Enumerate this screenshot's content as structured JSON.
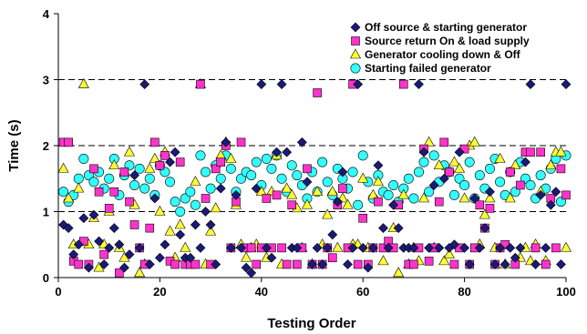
{
  "chart_data": {
    "type": "scatter",
    "xlabel": "Testing Order",
    "ylabel": "Time (s)",
    "xlim": [
      0,
      100
    ],
    "ylim": [
      0,
      4
    ],
    "x_ticks": [
      "0",
      "20",
      "40",
      "60",
      "80",
      "100"
    ],
    "y_ticks": [
      "0",
      "1",
      "2",
      "3",
      "4"
    ],
    "dashed_gridlines_y": [
      1,
      2,
      3
    ],
    "legend_placement": "top-right",
    "series": [
      {
        "name": "Off source & starting generator",
        "marker": "diamond",
        "color": "#1a1a7a",
        "x": [
          1,
          2,
          3,
          4,
          5,
          6,
          7,
          8,
          9,
          10,
          11,
          12,
          13,
          14,
          15,
          16,
          17,
          18,
          19,
          20,
          21,
          22,
          23,
          24,
          25,
          26,
          27,
          28,
          29,
          30,
          31,
          32,
          33,
          34,
          35,
          36,
          37,
          38,
          39,
          40,
          41,
          42,
          43,
          44,
          45,
          46,
          47,
          48,
          49,
          50,
          51,
          52,
          53,
          54,
          55,
          56,
          57,
          58,
          59,
          60,
          61,
          62,
          63,
          64,
          65,
          66,
          67,
          68,
          69,
          70,
          71,
          72,
          73,
          74,
          75,
          76,
          77,
          78,
          79,
          80,
          81,
          82,
          83,
          84,
          85,
          86,
          87,
          88,
          89,
          90,
          91,
          92,
          93,
          94,
          95,
          96,
          97,
          98,
          99,
          100
        ],
        "y": [
          0.8,
          0.75,
          0.35,
          0.5,
          0.9,
          0.15,
          0.95,
          0.55,
          0.2,
          0.45,
          0.75,
          0.5,
          0.15,
          0.35,
          1.55,
          0.45,
          2.93,
          0.2,
          1.2,
          0.3,
          0.5,
          1.75,
          1.9,
          0.65,
          0.3,
          0.3,
          0.8,
          0.45,
          1.0,
          0.8,
          0.2,
          1.35,
          2.05,
          0.45,
          1.25,
          0.45,
          0.15,
          0.07,
          1.35,
          2.93,
          0.45,
          0.3,
          1.9,
          2.93,
          1.9,
          0.45,
          0.45,
          2.05,
          1.45,
          0.2,
          0.45,
          0.2,
          0.45,
          0.65,
          1.15,
          1.6,
          0.2,
          0.45,
          2.93,
          0.45,
          0.15,
          0.45,
          1.7,
          0.75,
          0.45,
          1.1,
          0.75,
          0.45,
          0.45,
          0.45,
          2.93,
          1.9,
          0.45,
          1.4,
          0.45,
          1.5,
          0.45,
          0.5,
          1.9,
          0.45,
          0.2,
          1.2,
          0.45,
          0.75,
          1.3,
          0.2,
          0.45,
          0.2,
          0.45,
          0.3,
          0.45,
          1.75,
          2.93,
          0.2,
          1.25,
          0.45,
          1.1,
          1.3,
          0.2,
          2.93
        ]
      },
      {
        "name": "Source return On & load supply",
        "marker": "square",
        "color": "#ff33cc",
        "x": [
          1,
          2,
          3,
          4,
          5,
          6,
          7,
          8,
          9,
          10,
          11,
          12,
          13,
          14,
          15,
          16,
          17,
          18,
          19,
          20,
          21,
          22,
          23,
          24,
          25,
          26,
          27,
          28,
          29,
          30,
          31,
          32,
          33,
          34,
          35,
          36,
          37,
          38,
          39,
          40,
          41,
          42,
          43,
          44,
          45,
          46,
          47,
          48,
          49,
          50,
          51,
          52,
          53,
          54,
          55,
          56,
          57,
          58,
          59,
          60,
          61,
          62,
          63,
          64,
          65,
          66,
          67,
          68,
          69,
          70,
          71,
          72,
          73,
          74,
          75,
          76,
          77,
          78,
          79,
          80,
          81,
          82,
          83,
          84,
          85,
          86,
          87,
          88,
          89,
          90,
          91,
          92,
          93,
          94,
          95,
          96,
          97,
          98,
          99,
          100
        ],
        "y": [
          2.05,
          2.05,
          0.25,
          0.2,
          0.55,
          0.2,
          1.65,
          1.3,
          0.35,
          1.05,
          1.3,
          0.07,
          1.6,
          1.15,
          0.8,
          0.45,
          0.2,
          0.75,
          2.05,
          1.7,
          1.85,
          0.25,
          0.2,
          1.75,
          0.2,
          0.2,
          0.2,
          2.93,
          1.2,
          0.2,
          1.65,
          1.75,
          2.0,
          0.45,
          1.15,
          2.05,
          0.45,
          0.45,
          0.2,
          0.45,
          1.2,
          0.45,
          1.25,
          0.45,
          0.2,
          1.1,
          0.2,
          0.45,
          1.65,
          0.2,
          2.8,
          0.2,
          0.45,
          0.3,
          1.1,
          1.35,
          0.45,
          2.93,
          0.2,
          0.9,
          0.2,
          0.45,
          1.15,
          0.45,
          0.55,
          0.45,
          1.1,
          2.93,
          0.2,
          0.2,
          0.45,
          1.95,
          0.25,
          0.45,
          1.15,
          2.05,
          1.6,
          0.2,
          0.45,
          1.95,
          0.2,
          0.45,
          1.1,
          0.75,
          1.05,
          0.2,
          0.45,
          0.5,
          1.6,
          0.2,
          1.4,
          1.9,
          1.9,
          0.45,
          1.9,
          0.2,
          1.2,
          0.45,
          1.65,
          1.25
        ]
      },
      {
        "name": "Generator cooling down  & Off",
        "marker": "triangle",
        "color": "#ffff33",
        "x": [
          1,
          2,
          3,
          4,
          5,
          6,
          7,
          8,
          9,
          10,
          11,
          12,
          13,
          14,
          15,
          16,
          17,
          18,
          19,
          20,
          21,
          22,
          23,
          24,
          25,
          26,
          27,
          28,
          29,
          30,
          31,
          32,
          33,
          34,
          35,
          36,
          37,
          38,
          39,
          40,
          41,
          42,
          43,
          44,
          45,
          46,
          47,
          48,
          49,
          50,
          51,
          52,
          53,
          54,
          55,
          56,
          57,
          58,
          59,
          60,
          61,
          62,
          63,
          64,
          65,
          66,
          67,
          68,
          69,
          70,
          71,
          72,
          73,
          74,
          75,
          76,
          77,
          78,
          79,
          80,
          81,
          82,
          83,
          84,
          85,
          86,
          87,
          88,
          89,
          90,
          91,
          92,
          93,
          94,
          95,
          96,
          97,
          98,
          99,
          100
        ],
        "y": [
          1.65,
          1.2,
          0.5,
          1.35,
          2.93,
          0.5,
          0.9,
          0.15,
          0.5,
          1.0,
          1.7,
          0.45,
          0.3,
          1.9,
          1.1,
          0.07,
          0.2,
          1.65,
          1.8,
          1.0,
          1.9,
          0.7,
          0.3,
          0.8,
          0.45,
          0.2,
          1.45,
          2.93,
          0.2,
          0.7,
          1.05,
          1.85,
          2.05,
          1.8,
          1.1,
          0.5,
          0.3,
          0.45,
          0.5,
          1.3,
          0.3,
          1.3,
          1.85,
          0.2,
          1.35,
          1.25,
          1.05,
          0.45,
          1.1,
          0.2,
          1.3,
          0.5,
          0.95,
          1.3,
          0.45,
          1.2,
          1.1,
          0.5,
          0.5,
          1.5,
          0.45,
          1.25,
          1.45,
          0.25,
          0.5,
          0.75,
          0.07,
          1.25,
          0.2,
          0.45,
          0.25,
          1.2,
          2.05,
          0.45,
          1.7,
          0.25,
          0.35,
          1.75,
          1.65,
          1.2,
          2.0,
          2.05,
          0.5,
          0.95,
          1.2,
          0.45,
          1.8,
          0.2,
          1.2,
          1.7,
          0.3,
          0.45,
          0.25,
          0.5,
          1.3,
          0.25,
          1.7,
          1.9,
          1.9,
          0.45
        ]
      },
      {
        "name": "Starting failed generator",
        "marker": "circle",
        "color": "#33ffff",
        "x": [
          1,
          2,
          3,
          4,
          5,
          6,
          7,
          8,
          9,
          10,
          11,
          12,
          13,
          14,
          15,
          16,
          17,
          18,
          19,
          20,
          21,
          22,
          23,
          24,
          25,
          26,
          27,
          28,
          29,
          30,
          31,
          32,
          33,
          34,
          35,
          36,
          37,
          38,
          39,
          40,
          41,
          42,
          43,
          44,
          45,
          46,
          47,
          48,
          49,
          50,
          51,
          52,
          53,
          54,
          55,
          56,
          57,
          58,
          59,
          60,
          61,
          62,
          63,
          64,
          65,
          66,
          67,
          68,
          69,
          70,
          71,
          72,
          73,
          74,
          75,
          76,
          77,
          78,
          79,
          80,
          81,
          82,
          83,
          84,
          85,
          86,
          87,
          88,
          89,
          90,
          91,
          92,
          93,
          94,
          95,
          96,
          97,
          98,
          99,
          100
        ],
        "y": [
          1.3,
          1.15,
          1.25,
          1.5,
          1.8,
          1.55,
          1.45,
          1.6,
          1.35,
          1.5,
          1.8,
          1.25,
          1.55,
          1.7,
          1.4,
          1.65,
          1.35,
          1.5,
          1.25,
          1.7,
          1.6,
          1.45,
          1.15,
          1.0,
          1.2,
          1.3,
          1.1,
          1.85,
          1.6,
          1.35,
          1.7,
          1.5,
          1.85,
          1.65,
          1.3,
          1.5,
          1.6,
          1.55,
          1.75,
          1.4,
          1.8,
          1.65,
          1.85,
          1.5,
          1.3,
          1.7,
          1.55,
          1.4,
          1.2,
          1.6,
          1.3,
          1.75,
          1.45,
          1.25,
          1.65,
          1.5,
          1.35,
          1.6,
          1.1,
          1.85,
          1.45,
          1.2,
          1.55,
          1.3,
          1.25,
          1.4,
          1.15,
          1.35,
          1.5,
          1.2,
          1.6,
          1.75,
          1.3,
          1.85,
          1.45,
          1.7,
          1.6,
          1.25,
          1.5,
          1.4,
          1.75,
          1.2,
          1.55,
          1.35,
          1.65,
          1.8,
          1.45,
          1.25,
          1.6,
          1.3,
          1.75,
          1.5,
          1.4,
          1.2,
          1.55,
          1.35,
          1.65,
          1.8,
          1.15,
          1.85
        ]
      }
    ]
  }
}
